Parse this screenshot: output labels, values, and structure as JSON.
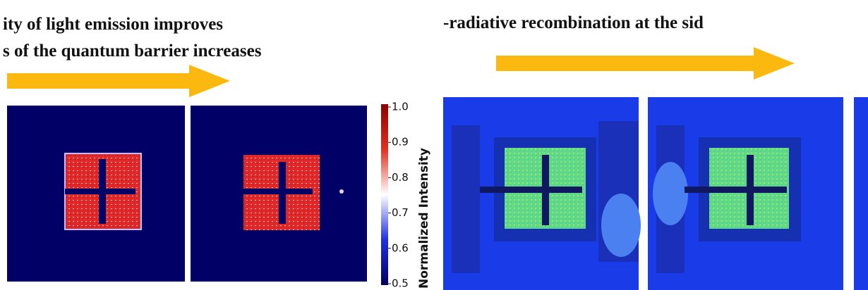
{
  "captions": {
    "left_line1": "ity of light emission improves",
    "left_line2": "s of the quantum barrier increases",
    "right_line1": "-radiative recombination at the sid"
  },
  "colorbar": {
    "label": "Normalized Intensity",
    "lim": [
      0.5,
      1.0
    ],
    "ticks": [
      {
        "value": 1,
        "label": "1.0"
      },
      0.9,
      0.8,
      0.7,
      0.6,
      0.5
    ]
  }
}
